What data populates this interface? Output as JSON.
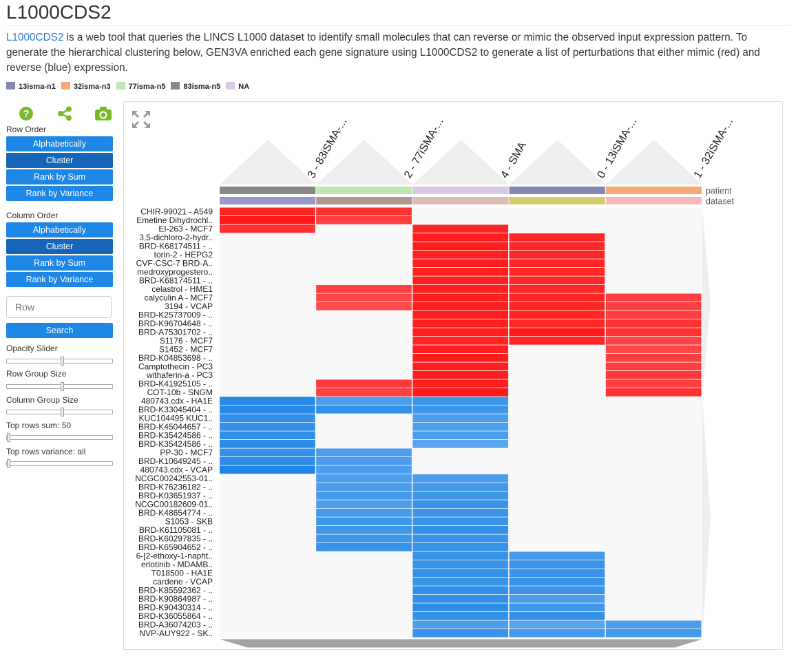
{
  "page": {
    "title": "L1000CDS2",
    "desc_link": "L1000CDS2",
    "desc_text": " is a web tool that queries the LINCS L1000 dataset to identify small molecules that can reverse or mimic the observed input expression pattern. To generate the hierarchical clustering below, GEN3VA enriched each gene signature using L1000CDS2 to generate a list of perturbations that either mimic (red) and reverse (blue) expression."
  },
  "legend": [
    {
      "label": "13isma-n1",
      "color": "#8587b2"
    },
    {
      "label": "32isma-n3",
      "color": "#f4aa72"
    },
    {
      "label": "77isma-n5",
      "color": "#bfe6b4"
    },
    {
      "label": "83isma-n5",
      "color": "#888888"
    },
    {
      "label": "NA",
      "color": "#d8cae4"
    }
  ],
  "sidebar": {
    "row_order_label": "Row Order",
    "row_buttons": [
      "Alphabetically",
      "Cluster",
      "Rank by Sum",
      "Rank by Variance"
    ],
    "column_order_label": "Column Order",
    "col_buttons": [
      "Alphabetically",
      "Cluster",
      "Rank by Sum",
      "Rank by Variance"
    ],
    "search_placeholder": "Row",
    "search_button": "Search",
    "opacity_label": "Opacity Slider",
    "row_group_label": "Row Group Size",
    "col_group_label": "Column Group Size",
    "top_rows_sum_label": "Top rows sum: 50",
    "top_rows_var_label": "Top rows variance: all",
    "icons": [
      "help-icon",
      "share-icon",
      "camera-icon"
    ]
  },
  "chart_data": {
    "type": "heatmap",
    "columns": [
      "3 - 83iSMA-...",
      "2 - 77iSMA-...",
      "4 - SMA",
      "0 - 13iSMA-...",
      "1 - 32iSMA-..."
    ],
    "category_labels": [
      "patient",
      "dataset"
    ],
    "column_patient_colors": [
      "#888888",
      "#bfe6b4",
      "#d8cae4",
      "#8587b2",
      "#f4aa72"
    ],
    "column_dataset_colors": [
      "#9a97c9",
      "#b3958c",
      "#d9bfb6",
      "#d4cc6a",
      "#f6b8b8"
    ],
    "rows": [
      "CHIR-99021 - A549",
      "Emetine Dihydrochl..",
      "EI-263 - MCF7",
      "3,5-dichloro-2-hydr..",
      "BRD-K68174511 - ..",
      "torin-2 - HEPG2",
      "CVF-CSC-7 BRD-A..",
      "medroxyprogestero..",
      "BRD-K68174511 - ..",
      "celastrol - HME1",
      "calyculin A - MCF7",
      "3194 - VCAP",
      "BRD-K25737009 - ..",
      "BRD-K96704648 - ..",
      "BRD-A75301702 - ..",
      "S1176 - MCF7",
      "S1452 - MCF7",
      "BRD-K04853698 - ..",
      "Camptothecin - PC3",
      "withaferin-a - PC3",
      "BRD-K41925105 - ..",
      "COT-10b - SNGM",
      "480743.cdx - HA1E",
      "BRD-K33045404 - ..",
      "KUC104495 KUC1..",
      "BRD-K45044657 - ..",
      "BRD-K35424586 - ..",
      "BRD-K35424586 - ..",
      "PP-30 - MCF7",
      "BRD-K10649245 - ..",
      "480743.cdx - VCAP",
      "NCGC00242553-01..",
      "BRD-K76236182 - ..",
      "BRD-K03651937 - ..",
      "NCGC00182609-01..",
      "BRD-K48654774 - ..",
      "S1053 - SKB",
      "BRD-K61105081 - ..",
      "BRD-K60297835 - ..",
      "BRD-K65904652 - ..",
      "6-[2-ethoxy-1-napht..",
      "erlotinib - MDAMB..",
      "T018500 - HA1E",
      "cardene - VCAP",
      "BRD-K85592362 - ..",
      "BRD-K90864987 - ..",
      "BRD-K90430314 - ..",
      "BRD-K36055864 - ..",
      "BRD-A36074203 - ..",
      "NVP-AUY922 - SK.."
    ],
    "values": [
      [
        0.9,
        0.8,
        0,
        0,
        0
      ],
      [
        1,
        0.7,
        0,
        0,
        0
      ],
      [
        0.8,
        0,
        0.9,
        0,
        0
      ],
      [
        0,
        0,
        0.95,
        0.9,
        0
      ],
      [
        0,
        0,
        0.95,
        0.9,
        0
      ],
      [
        0,
        0,
        0.95,
        0.9,
        0
      ],
      [
        0,
        0,
        0.95,
        0.9,
        0
      ],
      [
        0,
        0,
        0.95,
        0.9,
        0
      ],
      [
        0,
        0,
        0.95,
        0.9,
        0
      ],
      [
        0,
        0.7,
        0.95,
        0.9,
        0
      ],
      [
        0,
        0.65,
        0.95,
        0.9,
        0.7
      ],
      [
        0,
        0.6,
        0.95,
        0.9,
        0.7
      ],
      [
        0,
        0,
        0.95,
        0.9,
        0.7
      ],
      [
        0,
        0,
        0.95,
        0.9,
        0.8
      ],
      [
        0,
        0,
        0.95,
        1,
        0.8
      ],
      [
        0,
        0,
        0.9,
        0.9,
        0.65
      ],
      [
        0,
        0,
        0.95,
        0,
        0.65
      ],
      [
        0,
        0,
        1,
        0,
        0.7
      ],
      [
        0,
        0,
        0.95,
        0,
        0.7
      ],
      [
        0,
        0,
        0.95,
        0,
        0.75
      ],
      [
        0,
        0.75,
        0.95,
        0,
        0.7
      ],
      [
        0,
        0.7,
        1,
        0,
        0.8
      ],
      [
        -0.9,
        -0.6,
        -0.7,
        0,
        0
      ],
      [
        -0.9,
        -0.8,
        -0.7,
        0,
        0
      ],
      [
        -0.8,
        0,
        -0.6,
        0,
        0
      ],
      [
        -0.8,
        0,
        -0.6,
        0,
        0
      ],
      [
        -0.8,
        0,
        -0.6,
        0,
        0
      ],
      [
        -0.85,
        0,
        -0.5,
        0,
        0
      ],
      [
        -0.8,
        -0.6,
        0,
        0,
        0
      ],
      [
        -0.85,
        -0.6,
        0,
        0,
        0
      ],
      [
        -0.95,
        -0.6,
        0,
        0,
        0
      ],
      [
        0,
        -0.6,
        -0.6,
        0,
        0
      ],
      [
        0,
        -0.6,
        -0.65,
        0,
        0
      ],
      [
        0,
        -0.65,
        -0.7,
        0,
        0
      ],
      [
        0,
        -0.6,
        -0.75,
        0,
        0
      ],
      [
        0,
        -0.65,
        -0.75,
        0,
        0
      ],
      [
        0,
        -0.7,
        -0.75,
        0,
        0
      ],
      [
        0,
        -0.7,
        -0.8,
        0,
        0
      ],
      [
        0,
        -0.7,
        -0.75,
        0,
        0
      ],
      [
        0,
        -0.75,
        -0.75,
        0,
        0
      ],
      [
        0,
        0,
        -0.75,
        -0.65,
        0
      ],
      [
        0,
        0,
        -0.75,
        -0.75,
        0
      ],
      [
        0,
        0,
        -0.8,
        -0.75,
        0
      ],
      [
        0,
        0,
        -0.75,
        -0.75,
        0
      ],
      [
        0,
        0,
        -0.8,
        -0.75,
        0
      ],
      [
        0,
        0,
        -0.8,
        -0.6,
        0
      ],
      [
        0,
        0,
        -0.85,
        -0.7,
        0
      ],
      [
        0,
        0,
        -0.8,
        -0.8,
        0
      ],
      [
        0,
        0,
        -0.6,
        -0.5,
        -0.6
      ],
      [
        0,
        0,
        -0.75,
        -0.65,
        -0.65
      ]
    ]
  }
}
